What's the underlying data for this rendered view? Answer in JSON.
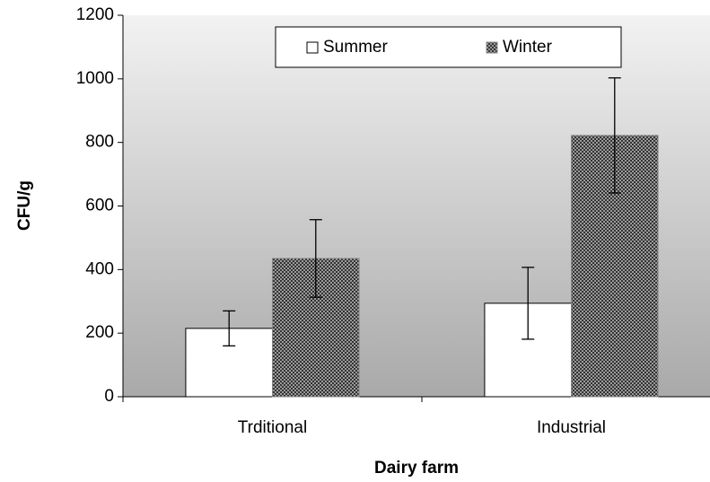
{
  "chart_data": {
    "type": "bar",
    "xlabel": "Dairy farm",
    "ylabel": "CFU/g",
    "categories": [
      "Trditional",
      "Industrial"
    ],
    "series": [
      {
        "name": "Summer",
        "color": "#ffffff",
        "values": [
          215,
          294
        ],
        "errors": [
          55,
          113
        ]
      },
      {
        "name": "Winter",
        "color": "#555555",
        "pattern": "checkerboard",
        "values": [
          435,
          822
        ],
        "errors": [
          122,
          181
        ]
      }
    ],
    "ylim": [
      0,
      1200
    ],
    "yticks": [
      0,
      200,
      400,
      600,
      800,
      1000,
      1200
    ],
    "legend": "upper center"
  }
}
